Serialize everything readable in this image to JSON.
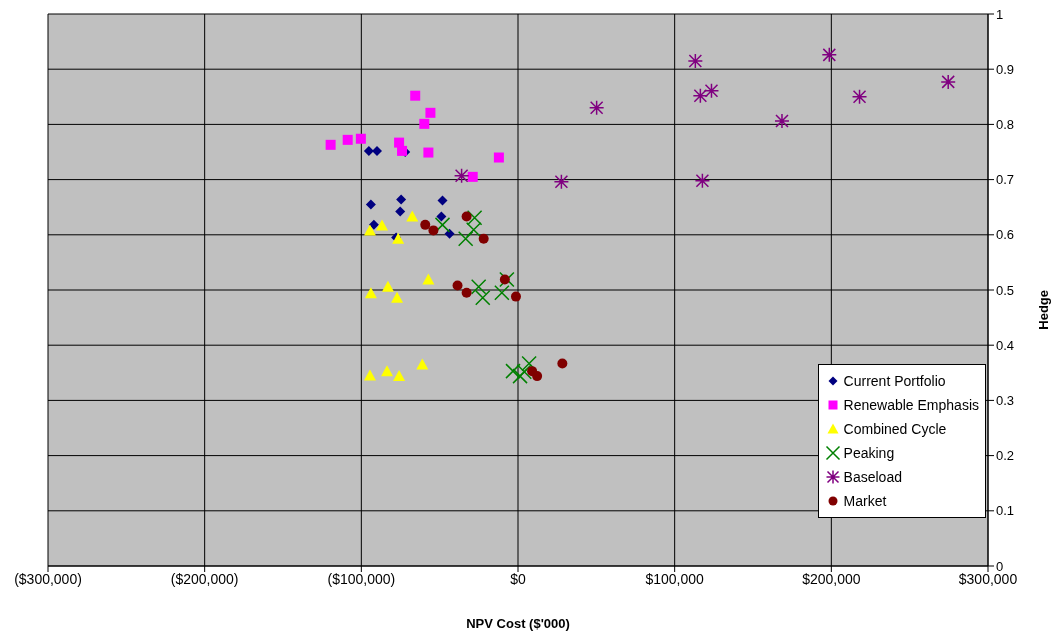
{
  "chart_data": {
    "type": "scatter",
    "xlabel": "NPV Cost ($'000)",
    "ylabel": "Hedge",
    "xlim": [
      -300000,
      300000
    ],
    "ylim": [
      0,
      1
    ],
    "xticks": [
      {
        "value": -300000,
        "label": "($300,000)"
      },
      {
        "value": -200000,
        "label": "($200,000)"
      },
      {
        "value": -100000,
        "label": "($100,000)"
      },
      {
        "value": 0,
        "label": "$0"
      },
      {
        "value": 100000,
        "label": "$100,000"
      },
      {
        "value": 200000,
        "label": "$200,000"
      },
      {
        "value": 300000,
        "label": "$300,000"
      }
    ],
    "yticks": [
      0,
      0.1,
      0.2,
      0.3,
      0.4,
      0.5,
      0.6,
      0.7,
      0.8,
      0.9,
      1
    ],
    "grid": true,
    "legend": "bottom right",
    "series": [
      {
        "name": "Current Portfolio",
        "color": "#000080",
        "marker": "diamond",
        "x": [
          -95200,
          -90000,
          -72000,
          -93900,
          -74600,
          -75200,
          -48200,
          -48900,
          -92000,
          -43700,
          -77800
        ],
        "values": [
          0.752,
          0.752,
          0.75,
          0.655,
          0.664,
          0.642,
          0.662,
          0.633,
          0.618,
          0.602,
          0.595
        ]
      },
      {
        "name": "Renewable Emphasis",
        "color": "#ff00ff",
        "marker": "square",
        "x": [
          -65600,
          -55900,
          -59800,
          -119600,
          -108700,
          -100300,
          -75900,
          -74000,
          -57200,
          -12200,
          -28900
        ],
        "values": [
          0.852,
          0.821,
          0.801,
          0.763,
          0.772,
          0.774,
          0.767,
          0.752,
          0.749,
          0.74,
          0.705
        ]
      },
      {
        "name": "Combined Cycle",
        "color": "#ffff00",
        "marker": "triangle",
        "x": [
          -67500,
          -86800,
          -94500,
          -76500,
          -57200,
          -93900,
          -83000,
          -77200,
          -61100,
          -94500,
          -83600,
          -75900
        ],
        "values": [
          0.633,
          0.617,
          0.608,
          0.593,
          0.519,
          0.494,
          0.506,
          0.486,
          0.365,
          0.345,
          0.353,
          0.344
        ]
      },
      {
        "name": "Peaking",
        "color": "#008000",
        "marker": "cross",
        "x": [
          -48200,
          -27700,
          -28300,
          -33400,
          -25100,
          -22500,
          -10300,
          -7100,
          -3200,
          1300,
          7100,
          4000
        ],
        "values": [
          0.618,
          0.631,
          0.609,
          0.593,
          0.506,
          0.486,
          0.495,
          0.519,
          0.353,
          0.344,
          0.367,
          0.352
        ]
      },
      {
        "name": "Baseload",
        "color": "#800080",
        "marker": "cross",
        "x": [
          113200,
          198700,
          116400,
          123500,
          50200,
          218000,
          274600,
          168500,
          27700,
          117700,
          -36000
        ],
        "values": [
          0.915,
          0.926,
          0.852,
          0.861,
          0.83,
          0.85,
          0.877,
          0.806,
          0.696,
          0.698,
          0.707
        ]
      },
      {
        "name": "Market",
        "color": "#800000",
        "marker": "circle",
        "x": [
          -59200,
          -54000,
          -32800,
          -21900,
          -38600,
          -32800,
          -8400,
          -1300,
          9000,
          12200,
          28300
        ],
        "values": [
          0.618,
          0.608,
          0.633,
          0.593,
          0.508,
          0.495,
          0.519,
          0.488,
          0.353,
          0.344,
          0.367
        ]
      }
    ]
  }
}
